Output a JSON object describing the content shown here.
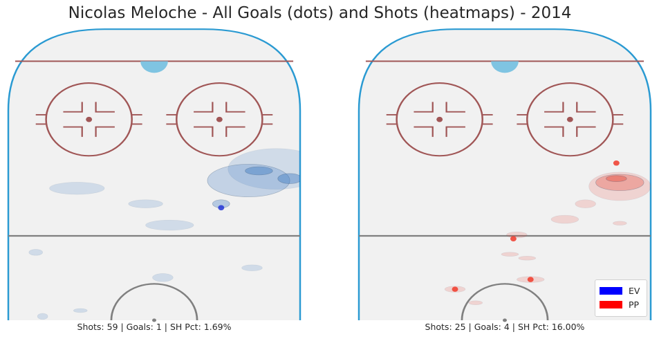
{
  "chart_data": {
    "title": "Nicolas Meloche - All Goals (dots) and Shots (heatmaps) - 2014",
    "type": "scatter",
    "panels": [
      {
        "caption": "Shots: 59 | Goals: 1 | SH Pct: 1.69%",
        "heat_color": "#3b78c2",
        "goal_color": "#2536d6",
        "goals": [
          {
            "x": 62,
            "y": 92
          }
        ],
        "shot_clusters": [
          {
            "x": 73,
            "y": 73,
            "rx": 4,
            "ry": 2,
            "level": 4
          },
          {
            "x": 82,
            "y": 77,
            "rx": 3.5,
            "ry": 2.5,
            "level": 4
          },
          {
            "x": 62,
            "y": 90,
            "rx": 2.5,
            "ry": 2,
            "level": 3
          },
          {
            "x": 70,
            "y": 78,
            "rx": 12,
            "ry": 8,
            "level": 2
          },
          {
            "x": 78,
            "y": 72,
            "rx": 14,
            "ry": 10,
            "level": 1
          },
          {
            "x": 40,
            "y": 90,
            "rx": 5,
            "ry": 2,
            "level": 1
          },
          {
            "x": 20,
            "y": 82,
            "rx": 8,
            "ry": 3,
            "level": 1
          },
          {
            "x": 47,
            "y": 101,
            "rx": 7,
            "ry": 2.5,
            "level": 1
          },
          {
            "x": 45,
            "y": 128,
            "rx": 3,
            "ry": 2,
            "level": 1
          },
          {
            "x": 71,
            "y": 123,
            "rx": 3,
            "ry": 1.5,
            "level": 1
          },
          {
            "x": 8,
            "y": 115,
            "rx": 2,
            "ry": 1.5,
            "level": 1
          },
          {
            "x": 10,
            "y": 148,
            "rx": 1.5,
            "ry": 1.5,
            "level": 1
          },
          {
            "x": 21,
            "y": 145,
            "rx": 2,
            "ry": 1,
            "level": 1
          }
        ]
      },
      {
        "caption": "Shots: 25 | Goals: 4 | SH Pct: 16.00%",
        "heat_color": "#e74c3c",
        "goal_color": "#f03a2a",
        "goals": [
          {
            "x": 75,
            "y": 69
          },
          {
            "x": 45,
            "y": 108
          },
          {
            "x": 50,
            "y": 129
          },
          {
            "x": 28,
            "y": 134
          }
        ],
        "shot_clusters": [
          {
            "x": 75,
            "y": 77,
            "rx": 3,
            "ry": 1.5,
            "level": 4
          },
          {
            "x": 76,
            "y": 79,
            "rx": 7,
            "ry": 4,
            "level": 3
          },
          {
            "x": 76,
            "y": 81,
            "rx": 9,
            "ry": 7,
            "level": 1
          },
          {
            "x": 66,
            "y": 90,
            "rx": 3,
            "ry": 2,
            "level": 1
          },
          {
            "x": 60,
            "y": 98,
            "rx": 4,
            "ry": 2,
            "level": 1
          },
          {
            "x": 46,
            "y": 106,
            "rx": 3,
            "ry": 1.5,
            "level": 1
          },
          {
            "x": 50,
            "y": 129,
            "rx": 4,
            "ry": 1.5,
            "level": 1
          },
          {
            "x": 28,
            "y": 134,
            "rx": 3,
            "ry": 1.5,
            "level": 1
          },
          {
            "x": 34,
            "y": 141,
            "rx": 2,
            "ry": 1,
            "level": 1
          },
          {
            "x": 44,
            "y": 116,
            "rx": 2.5,
            "ry": 1,
            "level": 1
          },
          {
            "x": 49,
            "y": 118,
            "rx": 2.5,
            "ry": 1,
            "level": 1
          },
          {
            "x": 76,
            "y": 100,
            "rx": 2,
            "ry": 1,
            "level": 1
          }
        ]
      }
    ],
    "legend": [
      {
        "label": "EV",
        "color": "#0000ff"
      },
      {
        "label": "PP",
        "color": "#ff0000"
      }
    ],
    "legend_position": "bottom-right"
  }
}
